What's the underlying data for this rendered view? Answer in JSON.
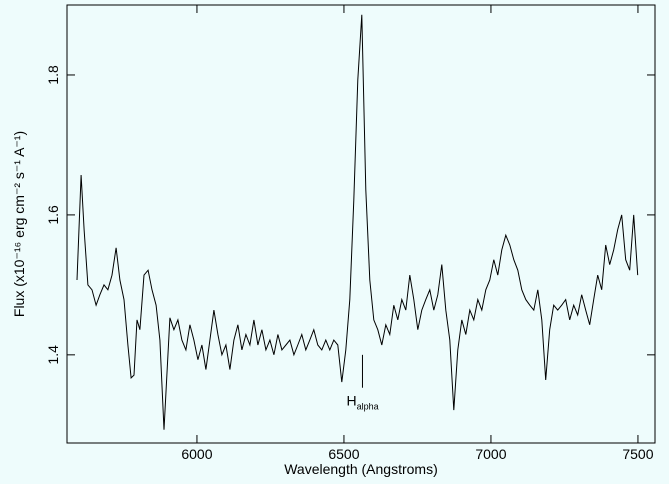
{
  "chart_data": {
    "type": "line",
    "xlabel": "Wavelength (Angstroms)",
    "ylabel": "Flux (x10⁻¹⁶ erg cm⁻² s⁻¹ A⁻¹)",
    "xlim": [
      5558,
      7558
    ],
    "ylim": [
      1.274,
      1.9
    ],
    "xticks": [
      6000,
      6500,
      7000,
      7500
    ],
    "yticks": [
      1.4,
      1.6,
      1.8
    ],
    "annotation": {
      "text": "H",
      "sub": "alpha",
      "x": 6563,
      "y": [
        1.353,
        1.4
      ]
    },
    "series": [
      {
        "color": "#000000",
        "x": [
          5592,
          5606,
          5616,
          5629,
          5643,
          5657,
          5670,
          5684,
          5697,
          5711,
          5725,
          5738,
          5752,
          5765,
          5776,
          5786,
          5796,
          5806,
          5820,
          5834,
          5847,
          5861,
          5874,
          5888,
          5895,
          5908,
          5921.6,
          5935.2,
          5948.8,
          5962.4,
          5976,
          5989.6,
          6003.2,
          6016.8,
          6030.4,
          6044,
          6057.6,
          6071.2,
          6084.8,
          6098.4,
          6112,
          6125.6,
          6139.2,
          6152.8,
          6166.4,
          6180,
          6193.6,
          6207.2,
          6220.8,
          6234.4,
          6248,
          6261.6,
          6275.2,
          6288.8,
          6302.4,
          6316,
          6329.6,
          6343.2,
          6356.8,
          6370.4,
          6384,
          6397.6,
          6411.2,
          6424.8,
          6438.4,
          6452,
          6465.6,
          6479.2,
          6492.8,
          6506.4,
          6520,
          6533.6,
          6547.2,
          6560.8,
          6574.4,
          6588,
          6601.6,
          6615.2,
          6628.8,
          6642.4,
          6656,
          6669.6,
          6683.2,
          6696.8,
          6710.4,
          6724,
          6737.6,
          6751.2,
          6764.8,
          6778.4,
          6792,
          6805.6,
          6819.2,
          6832.8,
          6846.4,
          6860,
          6873.6,
          6887.2,
          6900.8,
          6914.4,
          6928,
          6941.6,
          6955.2,
          6968.8,
          6982.4,
          6996,
          7009.6,
          7023.2,
          7036.8,
          7050.4,
          7064,
          7077.6,
          7091.2,
          7104.8,
          7118.4,
          7132,
          7145.6,
          7159.2,
          7172.8,
          7186.4,
          7200,
          7213.6,
          7227.2,
          7240.8,
          7254.4,
          7268,
          7281.6,
          7295.2,
          7308.8,
          7322.4,
          7336,
          7349.6,
          7363.2,
          7376.8,
          7390.4,
          7404,
          7417.6,
          7431.2,
          7444.8,
          7458.4,
          7472,
          7485.6,
          7499.2
        ],
        "values": [
          1.507,
          1.657,
          1.579,
          1.5,
          1.493,
          1.471,
          1.486,
          1.5,
          1.493,
          1.514,
          1.553,
          1.507,
          1.479,
          1.414,
          1.367,
          1.371,
          1.45,
          1.436,
          1.514,
          1.521,
          1.493,
          1.471,
          1.421,
          1.293,
          1.35,
          1.453,
          1.436,
          1.45,
          1.421,
          1.407,
          1.443,
          1.421,
          1.393,
          1.414,
          1.379,
          1.421,
          1.464,
          1.429,
          1.4,
          1.414,
          1.379,
          1.421,
          1.443,
          1.407,
          1.429,
          1.414,
          1.45,
          1.414,
          1.436,
          1.407,
          1.421,
          1.4,
          1.429,
          1.407,
          1.414,
          1.421,
          1.4,
          1.414,
          1.429,
          1.407,
          1.421,
          1.436,
          1.414,
          1.407,
          1.421,
          1.407,
          1.421,
          1.414,
          1.361,
          1.407,
          1.479,
          1.621,
          1.793,
          1.886,
          1.636,
          1.507,
          1.45,
          1.436,
          1.414,
          1.443,
          1.429,
          1.471,
          1.45,
          1.479,
          1.464,
          1.514,
          1.479,
          1.436,
          1.464,
          1.479,
          1.493,
          1.464,
          1.486,
          1.529,
          1.464,
          1.421,
          1.321,
          1.407,
          1.45,
          1.429,
          1.464,
          1.45,
          1.479,
          1.464,
          1.493,
          1.507,
          1.536,
          1.514,
          1.55,
          1.571,
          1.557,
          1.536,
          1.521,
          1.493,
          1.479,
          1.471,
          1.464,
          1.493,
          1.45,
          1.364,
          1.436,
          1.471,
          1.464,
          1.471,
          1.479,
          1.45,
          1.471,
          1.457,
          1.486,
          1.464,
          1.443,
          1.479,
          1.514,
          1.493,
          1.557,
          1.529,
          1.55,
          1.579,
          1.6,
          1.536,
          1.521,
          1.6,
          1.514
        ]
      }
    ]
  }
}
